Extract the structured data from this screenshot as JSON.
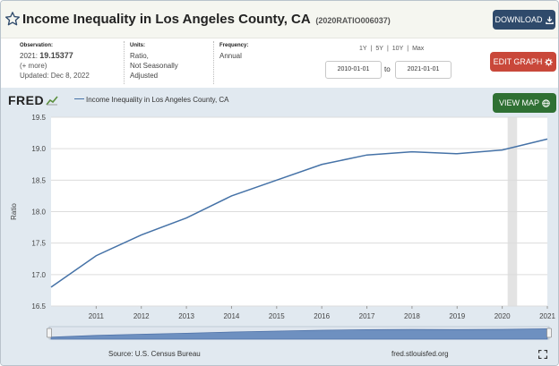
{
  "header": {
    "title": "Income Inequality in Los Angeles County, CA",
    "series_id": "(2020RATIO006037)",
    "download_label": "DOWNLOAD",
    "star_icon": "star-outline-icon",
    "download_icon": "download-icon"
  },
  "meta": {
    "observation_label": "Observation:",
    "observation_year": "2021:",
    "observation_value": "19.15377",
    "more_link": "(+ more)",
    "updated": "Updated: Dec 8, 2022",
    "units_label": "Units:",
    "units_lines": [
      "Ratio,",
      "Not Seasonally",
      "Adjusted"
    ],
    "frequency_label": "Frequency:",
    "frequency_value": "Annual"
  },
  "range": {
    "options": [
      "1Y",
      "5Y",
      "10Y",
      "Max"
    ],
    "separator": "|",
    "start_date": "2010-01-01",
    "to_label": "to",
    "end_date": "2021-01-01"
  },
  "buttons": {
    "edit_graph": "EDIT GRAPH",
    "edit_icon": "gear-icon",
    "view_map": "VIEW MAP",
    "view_map_icon": "globe-icon"
  },
  "chart_panel": {
    "logo": "FRED",
    "legend_label": "Income Inequality in Los Angeles County, CA",
    "source": "Source: U.S. Census Bureau",
    "site": "fred.stlouisfed.org",
    "expand_icon": "fullscreen-icon"
  },
  "chart_data": {
    "type": "line",
    "ylabel": "Ratio",
    "xlabel": "",
    "ylim": [
      16.5,
      19.5
    ],
    "yticks": [
      "16.5",
      "17.0",
      "17.5",
      "18.0",
      "18.5",
      "19.0",
      "19.5"
    ],
    "xlim": [
      2010,
      2021
    ],
    "xticks": [
      "2011",
      "2012",
      "2013",
      "2014",
      "2015",
      "2016",
      "2017",
      "2018",
      "2019",
      "2020",
      "2021"
    ],
    "grid": "horizontal",
    "recession_band": [
      2020.12,
      2020.33
    ],
    "series": [
      {
        "name": "Income Inequality in Los Angeles County, CA",
        "color": "#4572a7",
        "x": [
          2010,
          2011,
          2012,
          2013,
          2014,
          2015,
          2016,
          2017,
          2018,
          2019,
          2020,
          2021
        ],
        "y": [
          16.8,
          17.3,
          17.63,
          17.9,
          18.25,
          18.5,
          18.75,
          18.9,
          18.95,
          18.92,
          18.98,
          19.15377
        ]
      }
    ]
  }
}
